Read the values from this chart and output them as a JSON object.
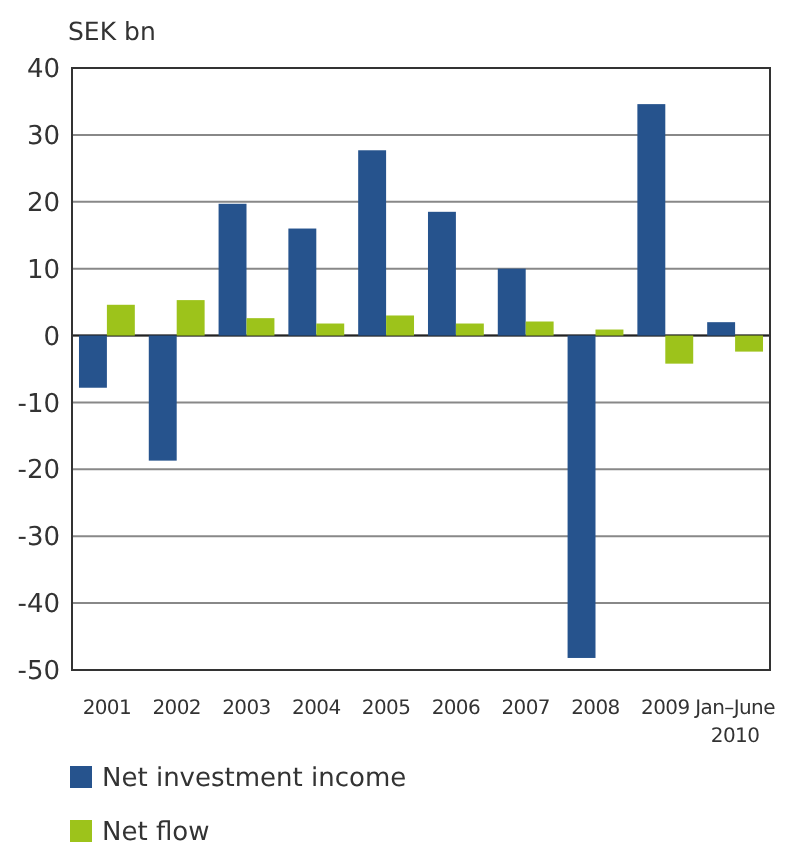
{
  "chart_data": {
    "type": "bar",
    "ylabel": "SEK bn",
    "categories": [
      "2001",
      "2002",
      "2003",
      "2004",
      "2005",
      "2006",
      "2007",
      "2008",
      "2009",
      "Jan–June\n2010"
    ],
    "series": [
      {
        "name": "Net investment income",
        "color": "#26538d",
        "values": [
          -7.8,
          -18.7,
          19.7,
          16,
          27.7,
          18.5,
          10,
          -48.2,
          34.6,
          2
        ]
      },
      {
        "name": "Net flow",
        "color": "#9dc31b",
        "values": [
          4.6,
          5.3,
          2.6,
          1.8,
          3,
          1.8,
          2.1,
          0.9,
          -4.2,
          -2.4
        ]
      }
    ],
    "ylim": [
      -50,
      40
    ],
    "yticks": [
      -50,
      -40,
      -30,
      -20,
      -10,
      0,
      10,
      20,
      30,
      40
    ],
    "grid": "y",
    "legend": "bottom"
  }
}
